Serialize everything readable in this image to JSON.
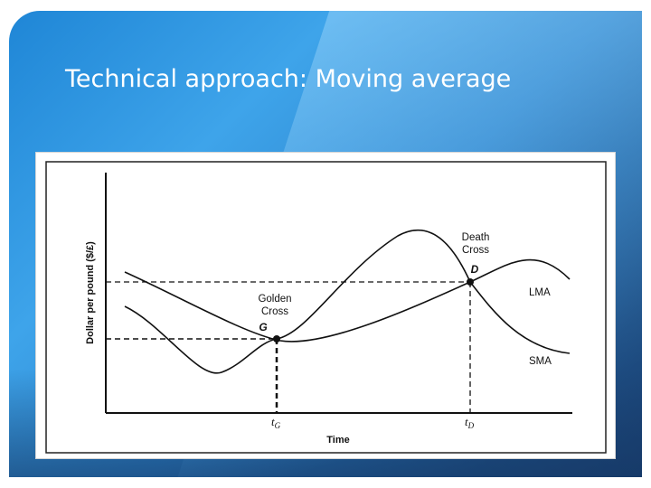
{
  "slide": {
    "title": "Technical approach: Moving average"
  },
  "figure": {
    "ylabel": "Dollar per pound ($/£)",
    "xlabel": "Time",
    "series": [
      {
        "name": "LMA"
      },
      {
        "name": "SMA"
      }
    ],
    "points": {
      "golden": {
        "label_line1": "Golden",
        "label_line2": "Cross",
        "letter": "G",
        "tick_main": "t",
        "tick_sub": "G"
      },
      "death": {
        "label_line1": "Death",
        "label_line2": "Cross",
        "letter": "D",
        "tick_main": "t",
        "tick_sub": "D"
      }
    }
  },
  "colors": {
    "slide_blue": "#2e86cf",
    "title_text": "#ffffff",
    "ink": "#111111"
  }
}
